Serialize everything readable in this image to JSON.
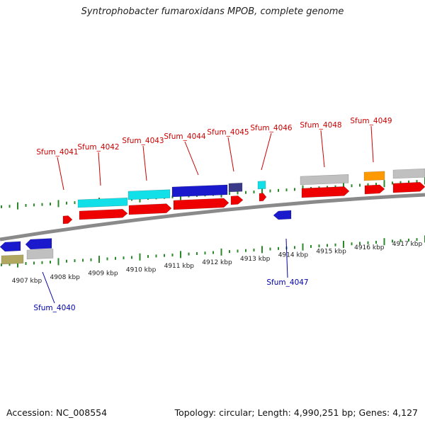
{
  "title": "Syntrophobacter fumaroxidans MPOB, complete genome",
  "accession": "Accession: NC_008554",
  "summary": "Topology: circular; Length: 4,990,251 bp; Genes: 4,127",
  "scale_labels": [
    "4907 kbp",
    "4908 kbp",
    "4909 kbp",
    "4910 kbp",
    "4911 kbp",
    "4912 kbp",
    "4913 kbp",
    "4914 kbp",
    "4915 kbp",
    "4916 kbp",
    "4917 kbp"
  ],
  "gene_labels": {
    "top": [
      "Sfum_4041",
      "Sfum_4042",
      "Sfum_4043",
      "Sfum_4044",
      "Sfum_4045",
      "Sfum_4046",
      "Sfum_4048",
      "Sfum_4049"
    ],
    "bottom": [
      "Sfum_4040",
      "Sfum_4047"
    ]
  },
  "colors": {
    "label_top": "#cc0000",
    "label_bottom": "#0000aa",
    "tick": "#2a8a2a",
    "backbone": "#8a8a8a",
    "red": "#ee0000",
    "cyan": "#11e0e8",
    "blue": "#1a1acc",
    "navy": "#3a3a88",
    "grey": "#c0c0c0",
    "orange": "#ff9900",
    "olive": "#b0a860"
  }
}
